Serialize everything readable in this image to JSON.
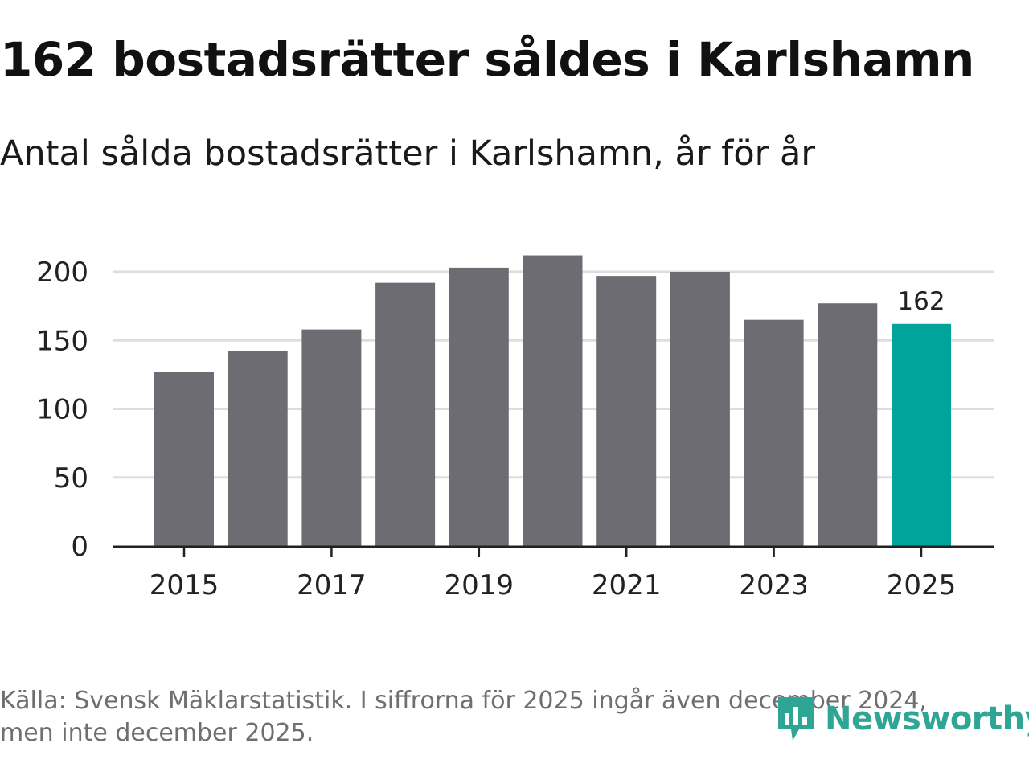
{
  "header": {
    "title": "162 bostadsrätter såldes i Karlshamn",
    "subtitle": "Antal sålda bostadsrätter i Karlshamn, år för år"
  },
  "footer": {
    "source_line1": "Källa: Svensk Mäklarstatistik. I siffrorna för 2025 ingår även december 2024,",
    "source_line2": "men inte december 2025.",
    "logo_text": "Newsworthy",
    "logo_icon": "newsworthy-logo-icon"
  },
  "colors": {
    "bar": "#6d6c72",
    "highlight": "#00a49a",
    "grid": "#dddddd",
    "axis": "#222222",
    "text": "#222222",
    "logo": "#2fa596"
  },
  "chart_data": {
    "type": "bar",
    "title": "162 bostadsrätter såldes i Karlshamn",
    "subtitle": "Antal sålda bostadsrätter i Karlshamn, år för år",
    "categories": [
      "2015",
      "2016",
      "2017",
      "2018",
      "2019",
      "2020",
      "2021",
      "2022",
      "2023",
      "2024",
      "2025"
    ],
    "values": [
      127,
      142,
      158,
      192,
      203,
      212,
      197,
      200,
      165,
      177,
      162
    ],
    "highlight_index": 10,
    "data_labels": [
      {
        "index": 10,
        "text": "162"
      }
    ],
    "x_tick_labels": [
      "2015",
      "2017",
      "2019",
      "2021",
      "2023",
      "2025"
    ],
    "y_ticks": [
      0,
      50,
      100,
      150,
      200
    ],
    "ylim": [
      0,
      200
    ],
    "xlabel": "",
    "ylabel": "",
    "grid": true,
    "legend": "none"
  }
}
